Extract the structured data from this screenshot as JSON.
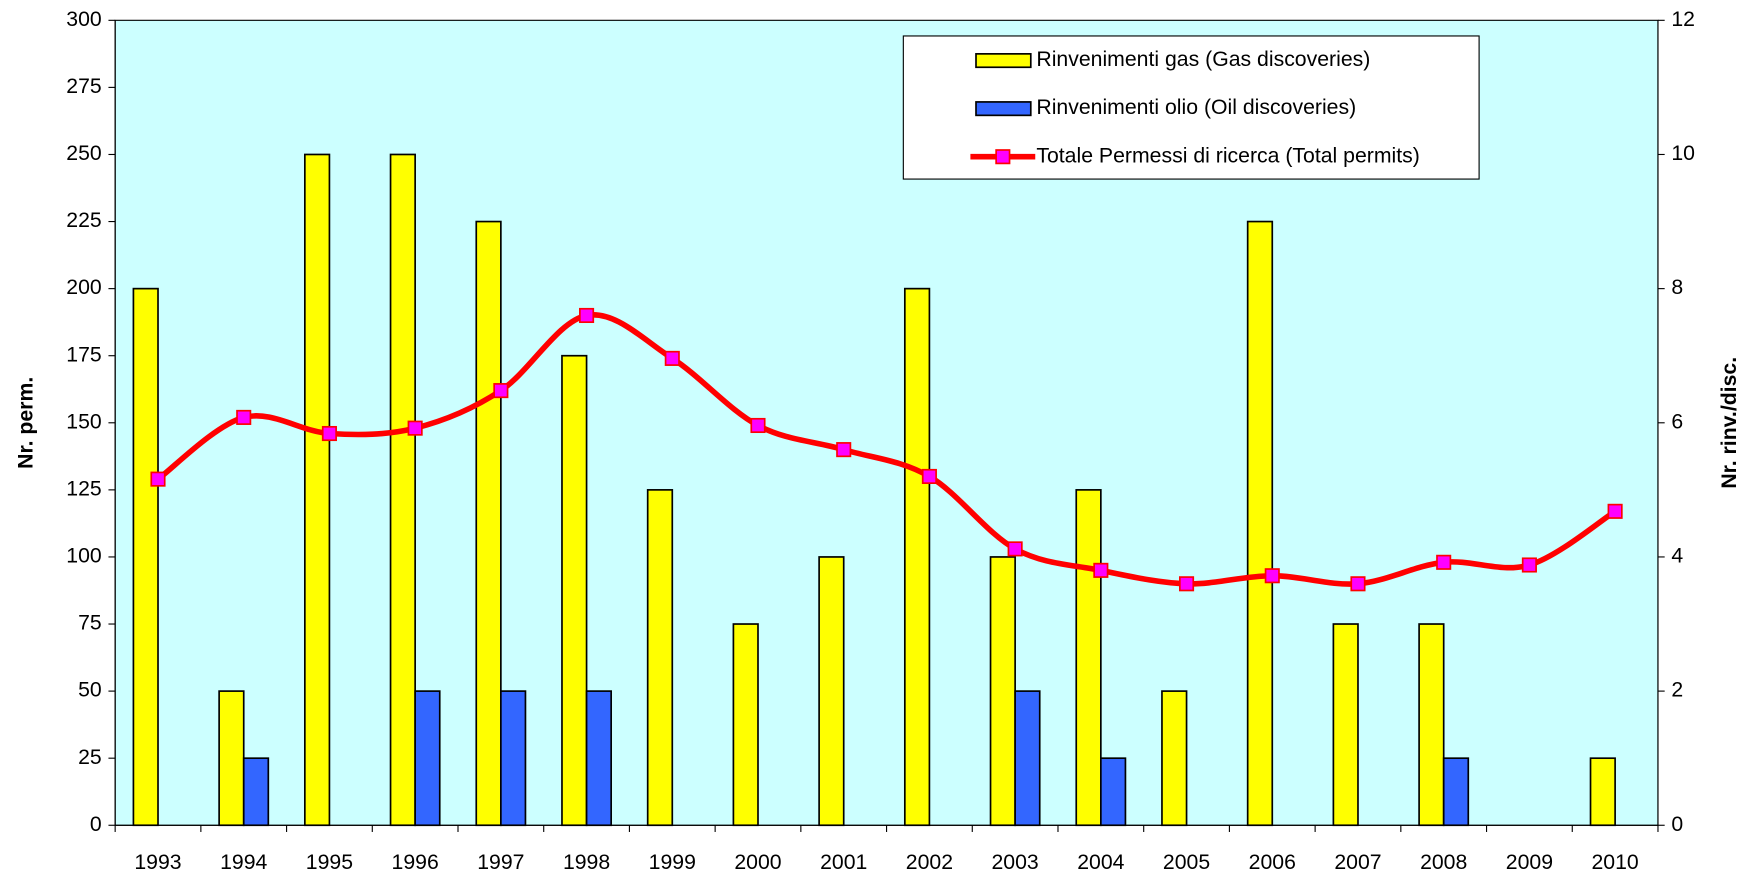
{
  "chart_data": {
    "type": "bar",
    "categories": [
      "1993",
      "1994",
      "1995",
      "1996",
      "1997",
      "1998",
      "1999",
      "2000",
      "2001",
      "2002",
      "2003",
      "2004",
      "2005",
      "2006",
      "2007",
      "2008",
      "2009",
      "2010"
    ],
    "series": [
      {
        "name": "Rinvenimenti gas (Gas discoveries)",
        "type": "bar",
        "axis": "y2",
        "color": "#ffff00",
        "values": [
          8,
          2,
          10,
          10,
          9,
          7,
          5,
          3,
          4,
          8,
          4,
          5,
          2,
          9,
          3,
          3,
          0,
          1
        ]
      },
      {
        "name": "Rinvenimenti olio (Oil discoveries)",
        "type": "bar",
        "axis": "y2",
        "color": "#3366ff",
        "values": [
          0,
          1,
          0,
          2,
          2,
          2,
          0,
          0,
          0,
          0,
          2,
          1,
          0,
          0,
          0,
          1,
          0,
          0
        ]
      },
      {
        "name": "Totale Permessi di ricerca (Total permits)",
        "type": "line",
        "axis": "y",
        "color": "#ff0000",
        "marker_color": "#ff00ff",
        "values": [
          129,
          152,
          146,
          148,
          162,
          190,
          174,
          149,
          140,
          130,
          103,
          95,
          90,
          93,
          90,
          98,
          97,
          117
        ]
      }
    ],
    "ylabel": "Nr. perm.",
    "y2label": "Nr. rinv./disc.",
    "ylim": [
      0,
      300
    ],
    "yticks": [
      0,
      25,
      50,
      75,
      100,
      125,
      150,
      175,
      200,
      225,
      250,
      275,
      300
    ],
    "y2lim": [
      0,
      12
    ],
    "y2ticks": [
      0,
      2,
      4,
      6,
      8,
      10,
      12
    ],
    "background": "#ccffff",
    "grid": false,
    "legend": "top-right"
  }
}
